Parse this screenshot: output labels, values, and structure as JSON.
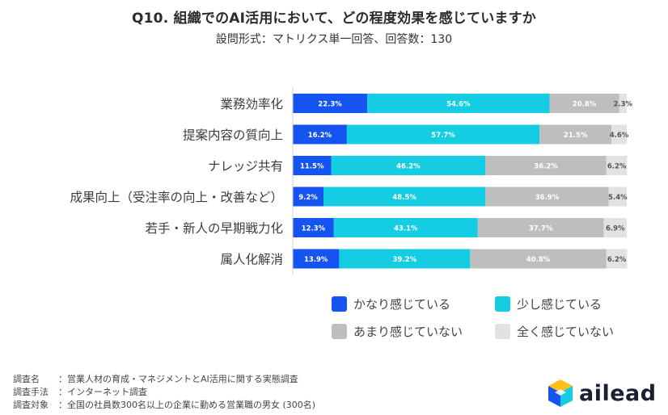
{
  "header": {
    "title": "Q10. 組織でのAI活用において、どの程度効果を感じていますか",
    "subtitle": "設問形式：マトリクス単一回答、回答数：130"
  },
  "chart_data": {
    "type": "bar",
    "orientation": "horizontal",
    "stacked": "100%",
    "categories": [
      "業務効率化",
      "提案内容の質向上",
      "ナレッジ共有",
      "成果向上（受注率の向上・改善など）",
      "若手・新人の早期戦力化",
      "属人化解消"
    ],
    "series": [
      {
        "name": "かなり感じている",
        "color": "#1554f0",
        "label_color": "#ffffff",
        "values": [
          22.3,
          16.2,
          11.5,
          9.2,
          12.3,
          13.9
        ]
      },
      {
        "name": "少し感じている",
        "color": "#14cde2",
        "label_color": "#ffffff",
        "values": [
          54.6,
          57.7,
          46.2,
          48.5,
          43.1,
          39.2
        ]
      },
      {
        "name": "あまり感じていない",
        "color": "#bebebe",
        "label_color": "#ffffff",
        "values": [
          20.8,
          21.5,
          36.2,
          36.9,
          37.7,
          40.8
        ]
      },
      {
        "name": "全く感じていない",
        "color": "#e2e2e2",
        "label_color": "#555555",
        "values": [
          2.3,
          4.6,
          6.2,
          5.4,
          6.9,
          6.2
        ]
      }
    ],
    "value_suffix": "%",
    "xlim": [
      0,
      100
    ],
    "legend_position": "bottom-right"
  },
  "notes": [
    {
      "key": "調査名",
      "value": "：営業人材の育成・マネジメントとAI活用に関する実態調査"
    },
    {
      "key": "調査手法",
      "value": "：インターネット調査"
    },
    {
      "key": "調査対象",
      "value": "：全国の社員数300名以上の企業に勤める営業職の男女 (300名)"
    }
  ],
  "logo": {
    "text": "ailead"
  }
}
